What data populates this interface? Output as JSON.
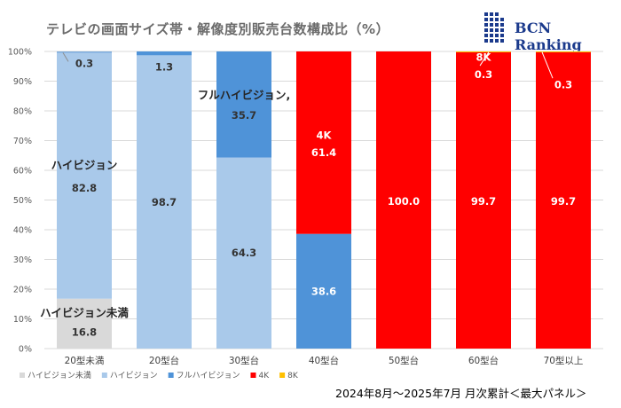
{
  "header": {
    "title": "テレビの画面サイズ帯・解像度別販売台数構成比（%）",
    "brand": "BCN Ranking"
  },
  "footer": {
    "period_note": "2024年8月～2025年7月 月次累計＜最大パネル＞"
  },
  "chart_data": {
    "type": "bar",
    "stacked": true,
    "title": "テレビの画面サイズ帯・解像度別販売台数構成比（%）",
    "xlabel": "",
    "ylabel": "",
    "ylim": [
      0,
      100
    ],
    "ytick_labels": [
      "0%",
      "10%",
      "20%",
      "30%",
      "40%",
      "50%",
      "60%",
      "70%",
      "80%",
      "90%",
      "100%"
    ],
    "grid": true,
    "legend_position": "bottom-left",
    "categories": [
      "20型未満",
      "20型台",
      "30型台",
      "40型台",
      "50型台",
      "60型台",
      "70型以上"
    ],
    "series": [
      {
        "name": "ハイビジョン未満",
        "color": "#d9d9d9",
        "values": [
          16.8,
          0,
          0,
          0,
          0,
          0,
          0
        ]
      },
      {
        "name": "ハイビジョン",
        "color": "#a9c9ea",
        "values": [
          82.8,
          98.7,
          64.3,
          0,
          0,
          0,
          0
        ]
      },
      {
        "name": "フルハイビジョン",
        "color": "#4f93d8",
        "values": [
          0.3,
          1.3,
          35.7,
          38.6,
          0,
          0,
          0
        ]
      },
      {
        "name": "4K",
        "color": "#ff0000",
        "values": [
          0,
          0,
          0,
          61.4,
          100.0,
          99.7,
          99.7
        ]
      },
      {
        "name": "8K",
        "color": "#ffc000",
        "values": [
          0,
          0,
          0,
          0,
          0,
          0.3,
          0.3
        ]
      }
    ],
    "value_labels": [
      {
        "text": "16.8",
        "category": 0,
        "y": 5.5,
        "color": "#333333"
      },
      {
        "text": "82.8",
        "category": 0,
        "y": 54.0,
        "color": "#333333"
      },
      {
        "text": "0.3",
        "category": 0,
        "y": 96.0,
        "color": "#333333"
      },
      {
        "text": "98.7",
        "category": 1,
        "y": 49.3,
        "color": "#333333"
      },
      {
        "text": "1.3",
        "category": 1,
        "y": 94.8,
        "color": "#333333"
      },
      {
        "text": "64.3",
        "category": 2,
        "y": 32.2,
        "color": "#333333"
      },
      {
        "text": "35.7",
        "category": 2,
        "y": 78.5,
        "color": "#333333"
      },
      {
        "text": "38.6",
        "category": 3,
        "y": 19.3,
        "color": "#ffffff"
      },
      {
        "text": "61.4",
        "category": 3,
        "y": 66.0,
        "color": "#ffffff"
      },
      {
        "text": "4K",
        "category": 3,
        "y": 71.8,
        "color": "#ffffff"
      },
      {
        "text": "100.0",
        "category": 4,
        "y": 49.5,
        "color": "#ffffff"
      },
      {
        "text": "99.7",
        "category": 5,
        "y": 49.5,
        "color": "#ffffff"
      },
      {
        "text": "8K",
        "category": 5,
        "y": 98.0,
        "color": "#ffffff"
      },
      {
        "text": "0.3",
        "category": 5,
        "y": 92.3,
        "color": "#ffffff"
      },
      {
        "text": "99.7",
        "category": 6,
        "y": 49.5,
        "color": "#ffffff"
      },
      {
        "text": "0.3",
        "category": 6,
        "y": 88.8,
        "color": "#ffffff"
      }
    ],
    "series_annotations": [
      {
        "text": "ハイビジョン未満",
        "category": 0,
        "y": 10.8
      },
      {
        "text": "ハイビジョン",
        "category": 0,
        "y": 60.5
      },
      {
        "text": "フルハイビジョン,",
        "category": 2,
        "y": 84.0
      }
    ]
  }
}
